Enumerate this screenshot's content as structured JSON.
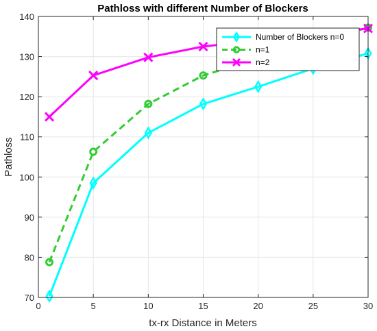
{
  "chart_data": {
    "type": "line",
    "title": "Pathloss with different Number of Blockers",
    "xlabel": "tx-rx Distance in Meters",
    "ylabel": "Pathloss",
    "xlim": [
      0,
      30
    ],
    "ylim": [
      70,
      140
    ],
    "xticks": [
      "0",
      "5",
      "10",
      "15",
      "20",
      "25",
      "30"
    ],
    "yticks": [
      "70",
      "80",
      "90",
      "100",
      "110",
      "120",
      "130",
      "140"
    ],
    "grid": true,
    "legend_position": "top-right",
    "x": [
      1,
      5,
      10,
      15,
      20,
      25,
      30
    ],
    "series": [
      {
        "name": "Number of Blockers n=0",
        "values": [
          70.3,
          98.5,
          111.0,
          118.2,
          122.5,
          127.0,
          130.8
        ],
        "color": "#00ffff",
        "line_style": "solid",
        "marker": "diamond"
      },
      {
        "name": "n=1",
        "values": [
          78.8,
          106.3,
          118.2,
          125.3,
          129.5,
          133.5,
          137.2
        ],
        "color": "#33cc33",
        "line_style": "dashed",
        "marker": "circle"
      },
      {
        "name": "n=2",
        "values": [
          115.0,
          125.3,
          129.8,
          132.5,
          134.0,
          135.5,
          137.0
        ],
        "color": "#ff00ff",
        "line_style": "solid",
        "marker": "x"
      }
    ]
  }
}
